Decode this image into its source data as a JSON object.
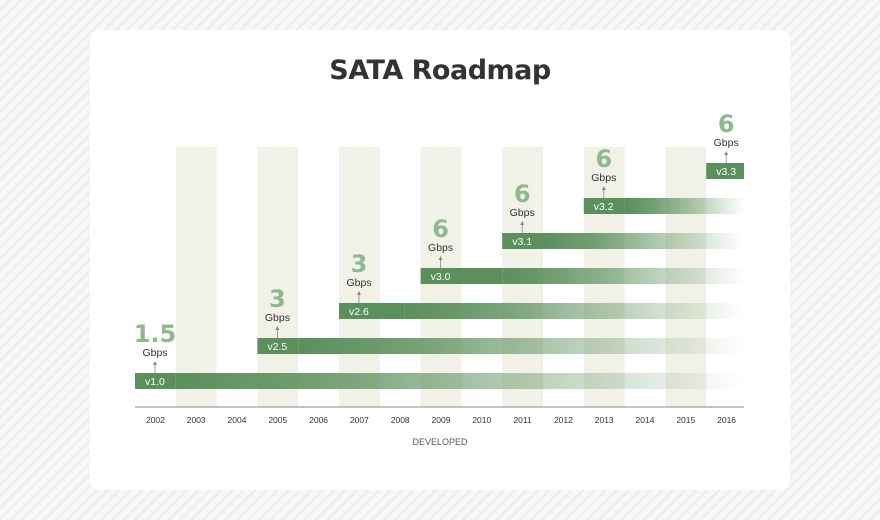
{
  "chart_data": {
    "type": "bar",
    "title": "SATA Roadmap",
    "xlabel": "DEVELOPED",
    "ylabel": "",
    "categories": [
      "2002",
      "2003",
      "2004",
      "2005",
      "2006",
      "2007",
      "2008",
      "2009",
      "2010",
      "2011",
      "2012",
      "2013",
      "2014",
      "2015",
      "2016"
    ],
    "shaded_years": [
      "2003",
      "2005",
      "2007",
      "2009",
      "2011",
      "2013",
      "2015"
    ],
    "series": [
      {
        "name": "v1.0",
        "start_year": 2002,
        "solid_until_year": 2003,
        "speed": "1.5",
        "unit": "Gbps"
      },
      {
        "name": "v2.5",
        "start_year": 2005,
        "solid_until_year": 2006,
        "speed": "3",
        "unit": "Gbps"
      },
      {
        "name": "v2.6",
        "start_year": 2007,
        "solid_until_year": 2008.6,
        "speed": "3",
        "unit": "Gbps"
      },
      {
        "name": "v3.0",
        "start_year": 2009,
        "solid_until_year": 2011,
        "speed": "6",
        "unit": "Gbps"
      },
      {
        "name": "v3.1",
        "start_year": 2011,
        "solid_until_year": 2012,
        "speed": "6",
        "unit": "Gbps"
      },
      {
        "name": "v3.2",
        "start_year": 2013,
        "solid_until_year": 2014,
        "speed": "6",
        "unit": "Gbps"
      },
      {
        "name": "v3.3",
        "start_year": 2016,
        "solid_until_year": 2017,
        "speed": "6",
        "unit": "Gbps"
      }
    ],
    "xlim": [
      2002,
      2016
    ],
    "grid": false,
    "legend": "none"
  },
  "colors": {
    "bar": "#5b8f5c",
    "speed_text": "#8fb88f",
    "column_shade": "#f2f1e8",
    "axis": "#888888",
    "title": "#333333",
    "label": "#333333"
  }
}
